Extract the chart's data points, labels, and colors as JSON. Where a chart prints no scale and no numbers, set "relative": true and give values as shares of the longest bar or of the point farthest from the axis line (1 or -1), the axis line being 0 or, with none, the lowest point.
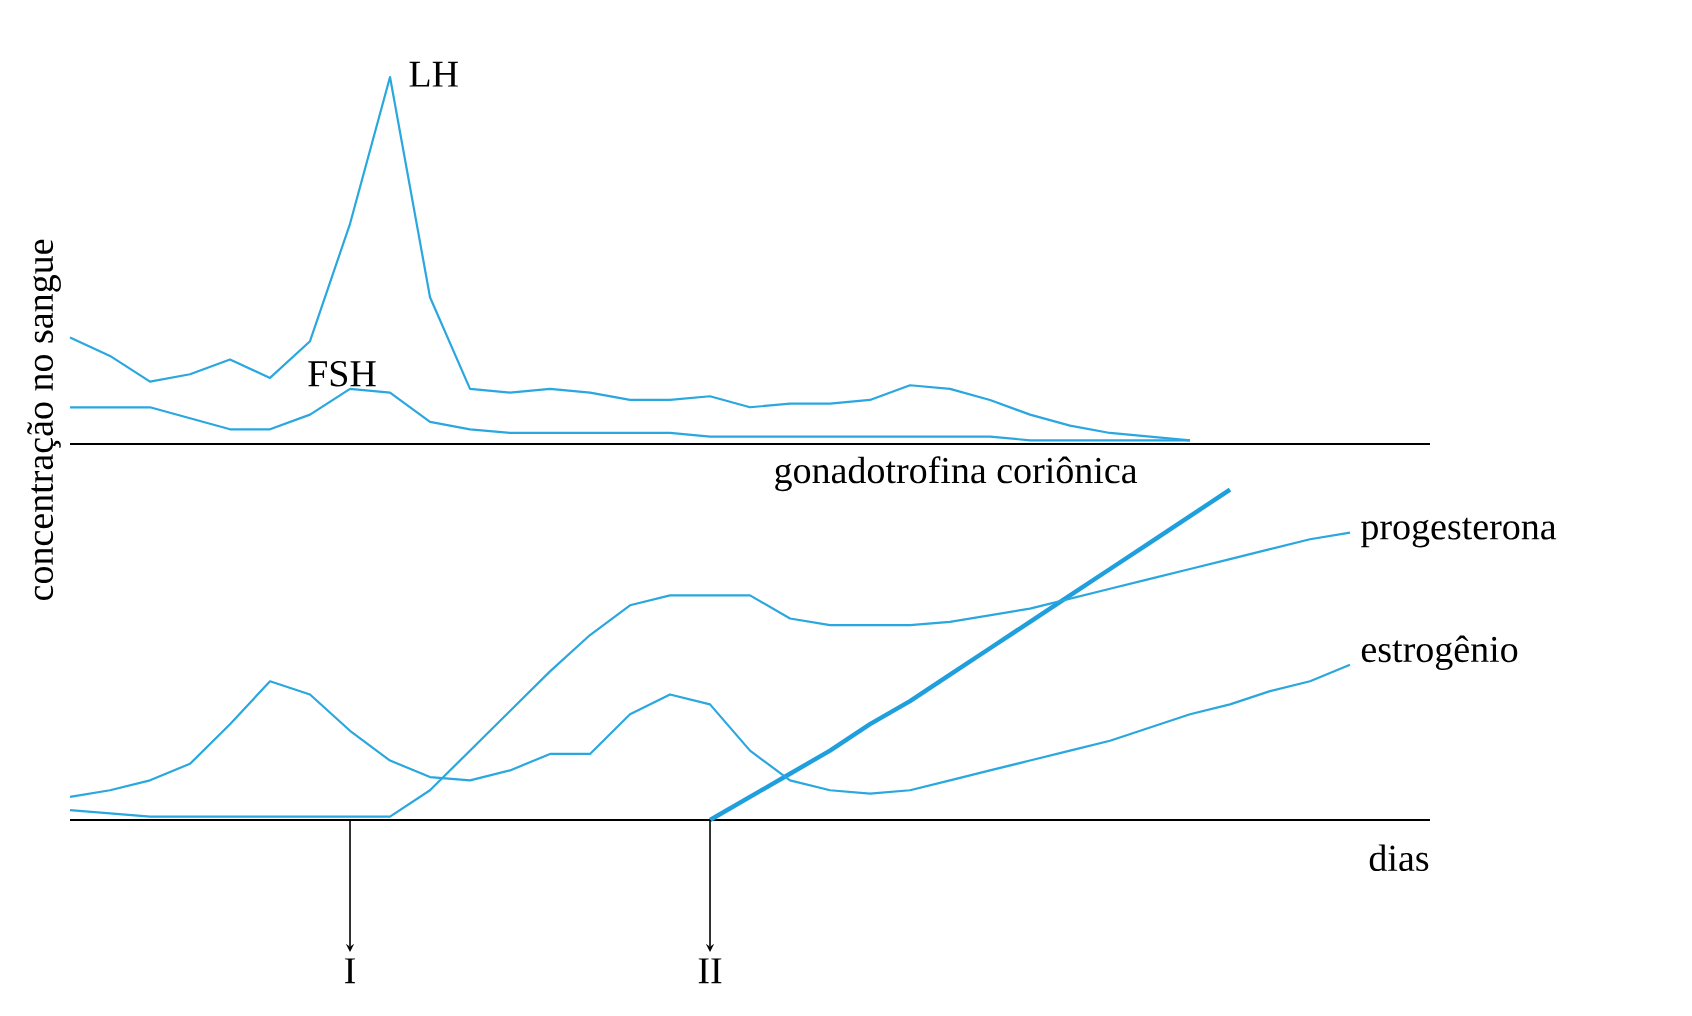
{
  "chart_data": [
    {
      "type": "line",
      "relative": true,
      "ylabel": "concentração no sangue",
      "categories": [
        null,
        null,
        null,
        null,
        null,
        null,
        null,
        null,
        null,
        null,
        null,
        null,
        null,
        null,
        null,
        null,
        null,
        null,
        null,
        null,
        null,
        null,
        null,
        null,
        null,
        null,
        null,
        null,
        null,
        null,
        null,
        null,
        null,
        null,
        null
      ],
      "series": [
        {
          "name": "LH",
          "color": "#2aa7df",
          "values": [
            0.29,
            0.24,
            0.17,
            0.19,
            0.23,
            0.18,
            0.28,
            0.6,
            1.0,
            0.4,
            0.15,
            0.14,
            0.15,
            0.14,
            0.12,
            0.12,
            0.13,
            0.1,
            0.11,
            0.11,
            0.12,
            0.16,
            0.15,
            0.12,
            0.08,
            0.05,
            0.03,
            0.02,
            0.01,
            null,
            null,
            null,
            null,
            null,
            null
          ]
        },
        {
          "name": "FSH",
          "color": "#2aa7df",
          "values": [
            0.1,
            0.1,
            0.1,
            0.07,
            0.04,
            0.04,
            0.08,
            0.15,
            0.14,
            0.06,
            0.04,
            0.03,
            0.03,
            0.03,
            0.03,
            0.03,
            0.02,
            0.02,
            0.02,
            0.02,
            0.02,
            0.02,
            0.02,
            0.02,
            0.01,
            0.01,
            0.01,
            0.01,
            0.01,
            null,
            null,
            null,
            null,
            null,
            null
          ]
        }
      ]
    },
    {
      "type": "line",
      "relative": true,
      "xlabel": "dias",
      "annotations": [
        "I",
        "II"
      ],
      "categories": [
        null,
        null,
        null,
        null,
        null,
        null,
        null,
        null,
        null,
        null,
        null,
        null,
        null,
        null,
        null,
        null,
        null,
        null,
        null,
        null,
        null,
        null,
        null,
        null,
        null,
        null,
        null,
        null,
        null,
        null,
        null,
        null,
        null,
        null,
        null
      ],
      "series": [
        {
          "name": "gonadotrofina coriônica",
          "color": "#1f9fdc",
          "values": [
            null,
            null,
            null,
            null,
            null,
            null,
            null,
            null,
            null,
            null,
            null,
            null,
            null,
            null,
            null,
            null,
            0,
            0.07,
            0.14,
            0.21,
            0.29,
            0.36,
            0.44,
            0.52,
            0.6,
            0.68,
            0.76,
            0.84,
            0.92,
            1.0,
            null,
            null,
            null,
            null,
            null
          ]
        },
        {
          "name": "progesterona",
          "color": "#2aa7df",
          "values": [
            0.03,
            0.02,
            0.01,
            0.01,
            0.01,
            0.01,
            0.01,
            0.01,
            0.01,
            0.09,
            0.21,
            0.33,
            0.45,
            0.56,
            0.65,
            0.68,
            0.68,
            0.68,
            0.61,
            0.59,
            0.59,
            0.59,
            0.6,
            0.62,
            0.64,
            0.67,
            0.7,
            0.73,
            0.76,
            0.79,
            0.82,
            0.85,
            0.87,
            null,
            null
          ]
        },
        {
          "name": "estrogênio",
          "color": "#2aa7df",
          "values": [
            0.07,
            0.09,
            0.12,
            0.17,
            0.29,
            0.42,
            0.38,
            0.27,
            0.18,
            0.13,
            0.12,
            0.15,
            0.2,
            0.2,
            0.32,
            0.38,
            0.35,
            0.21,
            0.12,
            0.09,
            0.08,
            0.09,
            0.12,
            0.15,
            0.18,
            0.21,
            0.24,
            0.28,
            0.32,
            0.35,
            0.39,
            0.42,
            0.47,
            null,
            null
          ]
        }
      ]
    }
  ]
}
